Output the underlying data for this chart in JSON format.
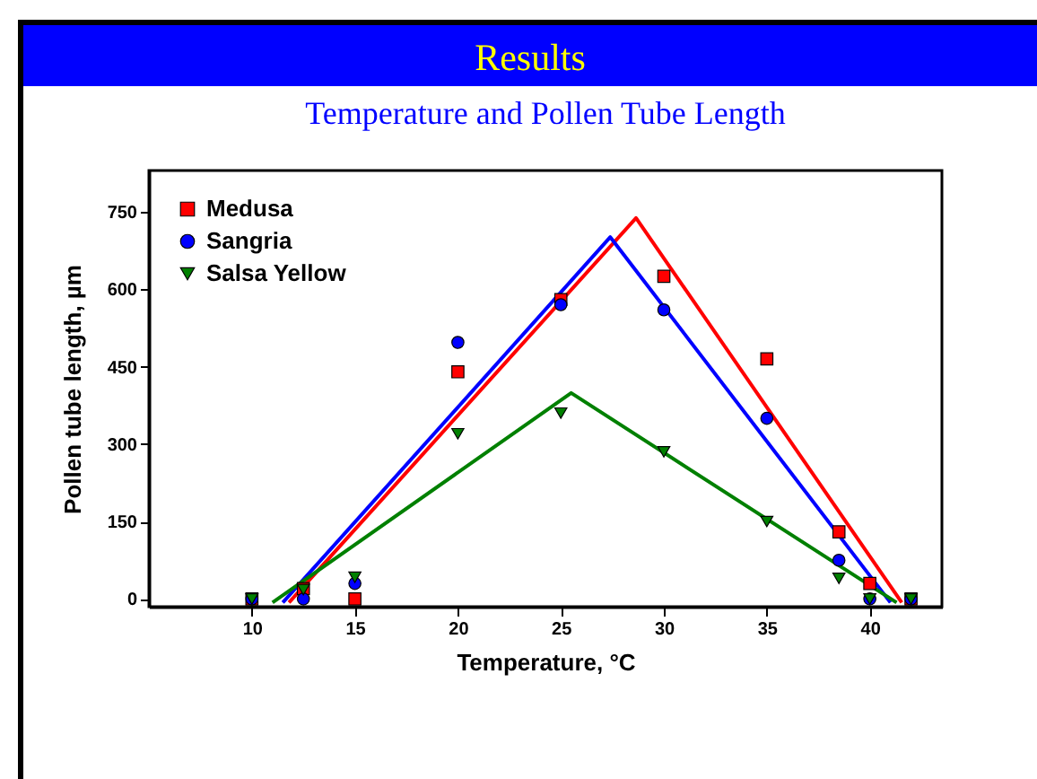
{
  "chart_data": {
    "type": "scatter",
    "title": "Results",
    "subtitle": "Temperature and Pollen Tube Length",
    "xlabel": "Temperature, °C",
    "ylabel": "Pollen tube length, µm",
    "xlim": [
      5,
      43.5
    ],
    "xticks": [
      10,
      15,
      20,
      25,
      30,
      35,
      40
    ],
    "ylim": [
      -15,
      830
    ],
    "yticks": [
      0,
      150,
      300,
      450,
      600,
      750
    ],
    "grid": false,
    "legend": "top left",
    "series": [
      {
        "name": "Medusa",
        "marker": "square",
        "color": "#ff0000",
        "x": [
          10,
          12.5,
          15,
          20,
          25,
          30,
          35,
          38.5,
          40,
          42
        ],
        "values": [
          0,
          20,
          0,
          440,
          580,
          625,
          465,
          130,
          30,
          0
        ]
      },
      {
        "name": "Sangria",
        "marker": "circle",
        "color": "#0000ff",
        "x": [
          10,
          12.5,
          15,
          20,
          25,
          30,
          35,
          38.5,
          40,
          42
        ],
        "values": [
          0,
          0,
          30,
          497,
          570,
          560,
          350,
          75,
          0,
          0
        ]
      },
      {
        "name": "Salsa Yellow",
        "marker": "triangle",
        "color": "#008000",
        "x": [
          10,
          12.5,
          15,
          20,
          25,
          30,
          35,
          38.5,
          40,
          42
        ],
        "values": [
          0,
          18,
          42,
          320,
          360,
          285,
          150,
          40,
          0,
          0
        ]
      },
      {
        "type": "line",
        "color": "#ff0000",
        "x": [
          11.8,
          28.65,
          41.55
        ],
        "values": [
          -7,
          738,
          -7
        ]
      },
      {
        "type": "line",
        "color": "#0000ff",
        "x": [
          11.5,
          27.4,
          41.0
        ],
        "values": [
          -7,
          701,
          -7
        ]
      },
      {
        "type": "line",
        "color": "#008000",
        "x": [
          11.0,
          25.5,
          41.3
        ],
        "values": [
          -7,
          399,
          -7
        ]
      }
    ]
  }
}
